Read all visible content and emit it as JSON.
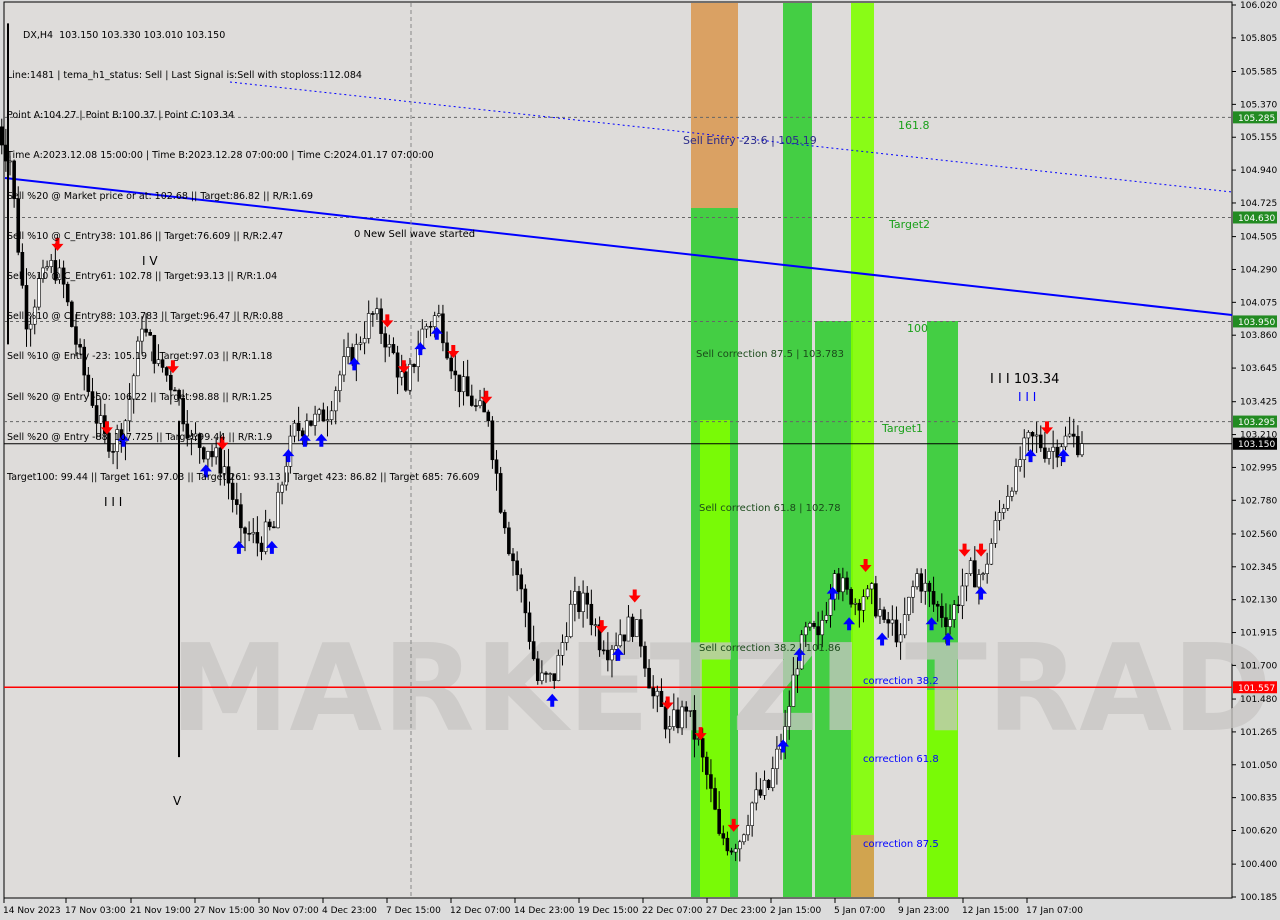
{
  "header": {
    "symbol_line": "DX,H4  103.150 103.330 103.010 103.150",
    "lines": [
      "Line:1481 | tema_h1_status: Sell | Last Signal is:Sell with stoploss:112.084",
      "Point A:104.27 | Point B:100.37 | Point C:103.34",
      "Time A:2023.12.08 15:00:00 | Time B:2023.12.28 07:00:00 | Time C:2024.01.17 07:00:00",
      "Sell %20 @ Market price or at: 102.68 || Target:86.82 || R/R:1.69",
      "Sell %10 @ C_Entry38: 101.86 || Target:76.609 || R/R:2.47",
      "Sell %10 @ C_Entry61: 102.78 || Target:93.13 || R/R:1.04",
      "Sell %10 @ C_Entry88: 103.783 || Target:96.47 || R/R:0.88",
      "Sell %10 @ Entry -23: 105.19 || Target:97.03 || R/R:1.18",
      "Sell %20 @ Entry -50: 106.22 || Target:98.88 || R/R:1.25",
      "Sell %20 @ Entry -88: 107.725 || Target:99.44 || R/R:1.9",
      "Target100: 99.44 || Target 161: 97.03 || Target 261: 93.13 || Target 423: 86.82 || Target 685: 76.609"
    ]
  },
  "watermark": "MARKETZI TRADE",
  "chart_data": {
    "type": "candlestick",
    "symbol": "DX",
    "timeframe": "H4",
    "ylim": [
      100.185,
      106.02
    ],
    "y_ticks": [
      106.02,
      105.805,
      105.585,
      105.37,
      105.155,
      104.94,
      104.725,
      104.505,
      104.29,
      104.075,
      103.86,
      103.645,
      103.425,
      103.21,
      102.995,
      102.78,
      102.56,
      102.345,
      102.13,
      101.915,
      101.7,
      101.48,
      101.265,
      101.05,
      100.835,
      100.62,
      100.4,
      100.185
    ],
    "x_ticks": [
      "14 Nov 2023",
      "17 Nov 03:00",
      "21 Nov 19:00",
      "27 Nov 15:00",
      "30 Nov 07:00",
      "4 Dec 23:00",
      "7 Dec 15:00",
      "12 Dec 07:00",
      "14 Dec 23:00",
      "19 Dec 15:00",
      "22 Dec 07:00",
      "27 Dec 23:00",
      "2 Jan 15:00",
      "5 Jan 07:00",
      "9 Jan 23:00",
      "12 Jan 15:00",
      "17 Jan 07:00"
    ],
    "closes": [
      105.0,
      103.9,
      104.3,
      104.3,
      103.8,
      103.4,
      103.1,
      103.3,
      103.9,
      103.7,
      103.5,
      103.2,
      103.1,
      103.0,
      102.6,
      102.5,
      102.6,
      103.2,
      103.3,
      103.3,
      103.6,
      103.8,
      104.0,
      103.8,
      103.5,
      103.9,
      104.0,
      103.6,
      103.4,
      103.3,
      102.6,
      102.2,
      101.6,
      101.6,
      102.1,
      102.1,
      101.8,
      101.9,
      102.0,
      101.5,
      101.3,
      101.4,
      101.1,
      100.6,
      100.5,
      100.8,
      100.9,
      101.3,
      101.9,
      101.9,
      102.3,
      102.1,
      102.2,
      102.0,
      101.9,
      102.3,
      102.1,
      102.0,
      102.3,
      102.3,
      102.7,
      103.0,
      103.2,
      103.1,
      103.2,
      103.15
    ],
    "current_price": {
      "value": 103.15,
      "label": "103.150",
      "color": "#000000"
    },
    "levels": [
      {
        "value": 105.285,
        "label": "105.285",
        "color": "#228b22",
        "style": "dashed"
      },
      {
        "value": 104.63,
        "label": "104.630",
        "color": "#228b22",
        "style": "dashed"
      },
      {
        "value": 103.95,
        "label": "103.950",
        "color": "#228b22",
        "style": "dashed"
      },
      {
        "value": 103.295,
        "label": "103.295",
        "color": "#228b22",
        "style": "dashed"
      },
      {
        "value": 101.557,
        "label": "101.557",
        "color": "#ff0000",
        "style": "solid"
      }
    ],
    "annotations": [
      {
        "text": "Sell Entry -23.6 | 105.19",
        "color": "#2a2a8a"
      },
      {
        "text": "161.8",
        "color": "#1aa01a"
      },
      {
        "text": "Target2",
        "color": "#1aa01a"
      },
      {
        "text": "0 New Sell wave started",
        "color": "#000000"
      },
      {
        "text": "100",
        "color": "#1aa01a"
      },
      {
        "text": "Sell correction 87.5 | 103.783",
        "color": "#1a4a1a"
      },
      {
        "text": "I I I 103.34",
        "color": "#000000"
      },
      {
        "text": "Target1",
        "color": "#1aa01a"
      },
      {
        "text": "Sell correction 61.8 | 102.78",
        "color": "#1a4a1a"
      },
      {
        "text": "Sell correction 38.2 | 101.86",
        "color": "#1a4a1a"
      },
      {
        "text": "correction 38.2",
        "color": "#0000ff"
      },
      {
        "text": "correction 61.8",
        "color": "#0000ff"
      },
      {
        "text": "correction 87.5",
        "color": "#0000ff"
      },
      {
        "text": "I V",
        "color": "#000000"
      },
      {
        "text": "I I I",
        "color": "#000000"
      },
      {
        "text": "V",
        "color": "#000000"
      },
      {
        "text": "I I I",
        "color": "#0000ff"
      }
    ],
    "sell_signals": [
      3,
      6,
      10,
      13,
      23,
      24,
      27,
      29,
      36,
      38,
      40,
      42,
      44,
      52,
      58,
      59,
      63
    ],
    "buy_signals": [
      7,
      12,
      14,
      16,
      17,
      18,
      19,
      21,
      25,
      26,
      33,
      37,
      47,
      48,
      50,
      51,
      53,
      56,
      57,
      59,
      62,
      64
    ],
    "colors": {
      "zone_green": "#33cc33",
      "zone_lime": "#7fff00",
      "zone_orange": "#d99a55",
      "trend_line": "#0000ff",
      "sell_arrow": "#ff0000",
      "buy_arrow": "#0000ff"
    }
  }
}
